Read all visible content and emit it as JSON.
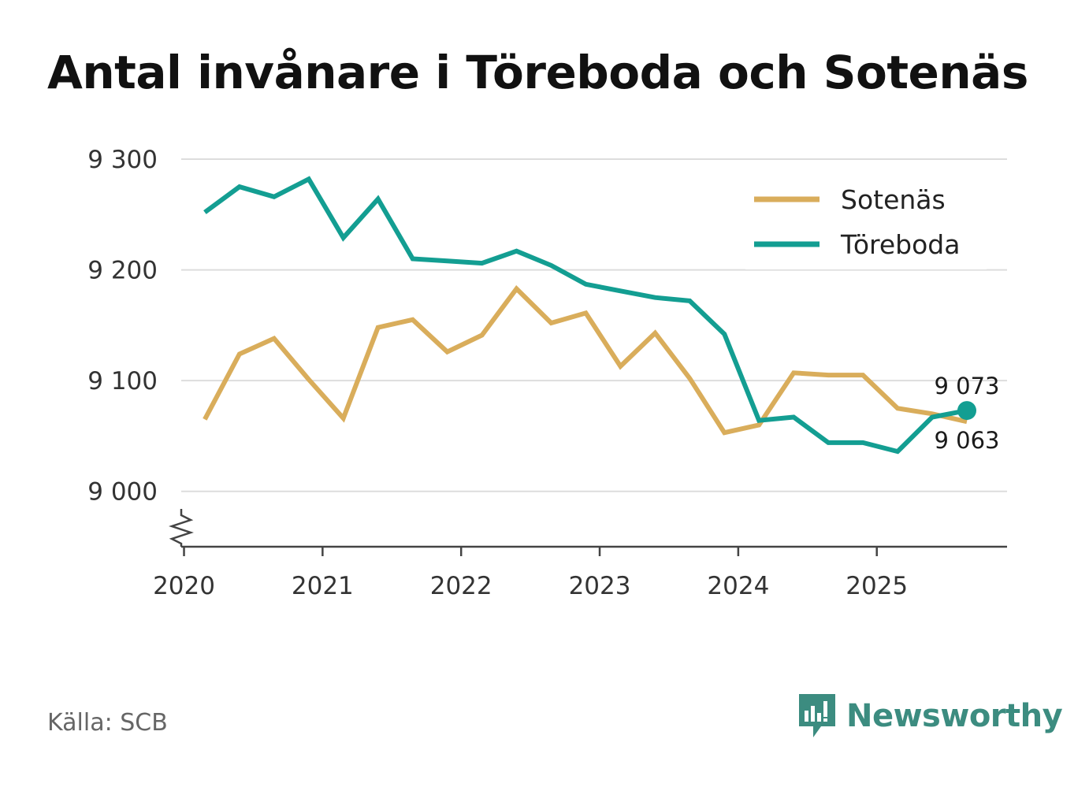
{
  "title": "Antal invånare i Töreboda och Sotenäs",
  "source": "Källa: SCB",
  "brand": "Newsworthy",
  "colors": {
    "sotenas": "#d9ad5b",
    "toreboda": "#139e92",
    "grid": "#dddddd",
    "axis": "#444444",
    "brand": "#3c8c80"
  },
  "chart_data": {
    "type": "line",
    "title": "Antal invånare i Töreboda och Sotenäs",
    "xlabel": "",
    "ylabel": "",
    "ylim": [
      8950,
      9300
    ],
    "y_ticks": [
      9000,
      9100,
      9200,
      9300
    ],
    "y_tick_labels": [
      "9 000",
      "9 100",
      "9 200",
      "9 300"
    ],
    "axis_break": true,
    "x_ticks": [
      2020,
      2021,
      2022,
      2023,
      2024,
      2025
    ],
    "x_tick_labels": [
      "2020",
      "2021",
      "2022",
      "2023",
      "2024",
      "2025"
    ],
    "xlim": [
      2019.98,
      2025.94
    ],
    "legend": {
      "position": "top-right",
      "entries": [
        "Sotenäs",
        "Töreboda"
      ]
    },
    "x": [
      2020.15,
      2020.4,
      2020.65,
      2020.9,
      2021.15,
      2021.4,
      2021.65,
      2021.9,
      2022.15,
      2022.4,
      2022.65,
      2022.9,
      2023.15,
      2023.4,
      2023.65,
      2023.9,
      2024.15,
      2024.4,
      2024.65,
      2024.9,
      2025.15,
      2025.4,
      2025.65
    ],
    "series": [
      {
        "name": "Sotenäs",
        "color": "#d9ad5b",
        "values": [
          9065,
          9124,
          9138,
          9101,
          9066,
          9148,
          9155,
          9126,
          9141,
          9183,
          9152,
          9161,
          9113,
          9143,
          9102,
          9053,
          9060,
          9107,
          9105,
          9105,
          9075,
          9070,
          9063
        ],
        "end_label": "9 063",
        "end_marker": false
      },
      {
        "name": "Töreboda",
        "color": "#139e92",
        "values": [
          9252,
          9275,
          9266,
          9282,
          9229,
          9264,
          9210,
          9208,
          9206,
          9217,
          9204,
          9187,
          9181,
          9175,
          9172,
          9142,
          9064,
          9067,
          9044,
          9044,
          9036,
          9067,
          9073
        ],
        "end_label": "9 073",
        "end_marker": true
      }
    ]
  }
}
